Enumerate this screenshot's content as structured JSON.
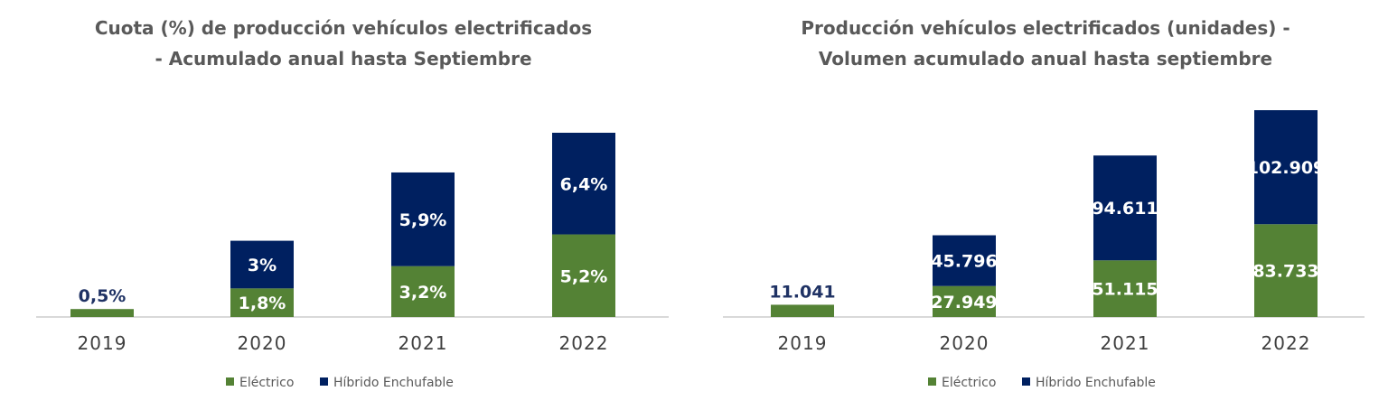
{
  "chart_data": [
    {
      "type": "bar",
      "stacked": true,
      "title": [
        "Cuota (%) de producción vehículos electrificados",
        "- Acumulado anual hasta Septiembre"
      ],
      "categories": [
        "2019",
        "2020",
        "2021",
        "2022"
      ],
      "series": [
        {
          "name": "Eléctrico",
          "color": "#548235",
          "values": [
            0.5,
            1.8,
            3.2,
            5.2
          ],
          "labels": [
            "0,5%",
            "1,8%",
            "3,2%",
            "5,2%"
          ]
        },
        {
          "name": "Híbrido Enchufable",
          "color": "#002060",
          "values": [
            0,
            3,
            5.9,
            6.4
          ],
          "labels": [
            "",
            "3%",
            "5,9%",
            "6,4%"
          ]
        }
      ],
      "ylim": [
        0,
        12
      ],
      "grid": false,
      "legend": "bottom"
    },
    {
      "type": "bar",
      "stacked": true,
      "title": [
        "Producción vehículos electrificados (unidades) -",
        "Volumen acumulado anual hasta septiembre"
      ],
      "categories": [
        "2019",
        "2020",
        "2021",
        "2022"
      ],
      "series": [
        {
          "name": "Eléctrico",
          "color": "#548235",
          "values": [
            11041,
            27949,
            51115,
            83733
          ],
          "labels": [
            "11.041",
            "27.949",
            "51.115",
            "83.733"
          ]
        },
        {
          "name": "Híbrido Enchufable",
          "color": "#002060",
          "values": [
            0,
            45796,
            94611,
            102909
          ],
          "labels": [
            "",
            "45.796",
            "94.611",
            "102.909"
          ]
        }
      ],
      "ylim": [
        0,
        195000
      ],
      "grid": false,
      "legend": "bottom"
    }
  ]
}
